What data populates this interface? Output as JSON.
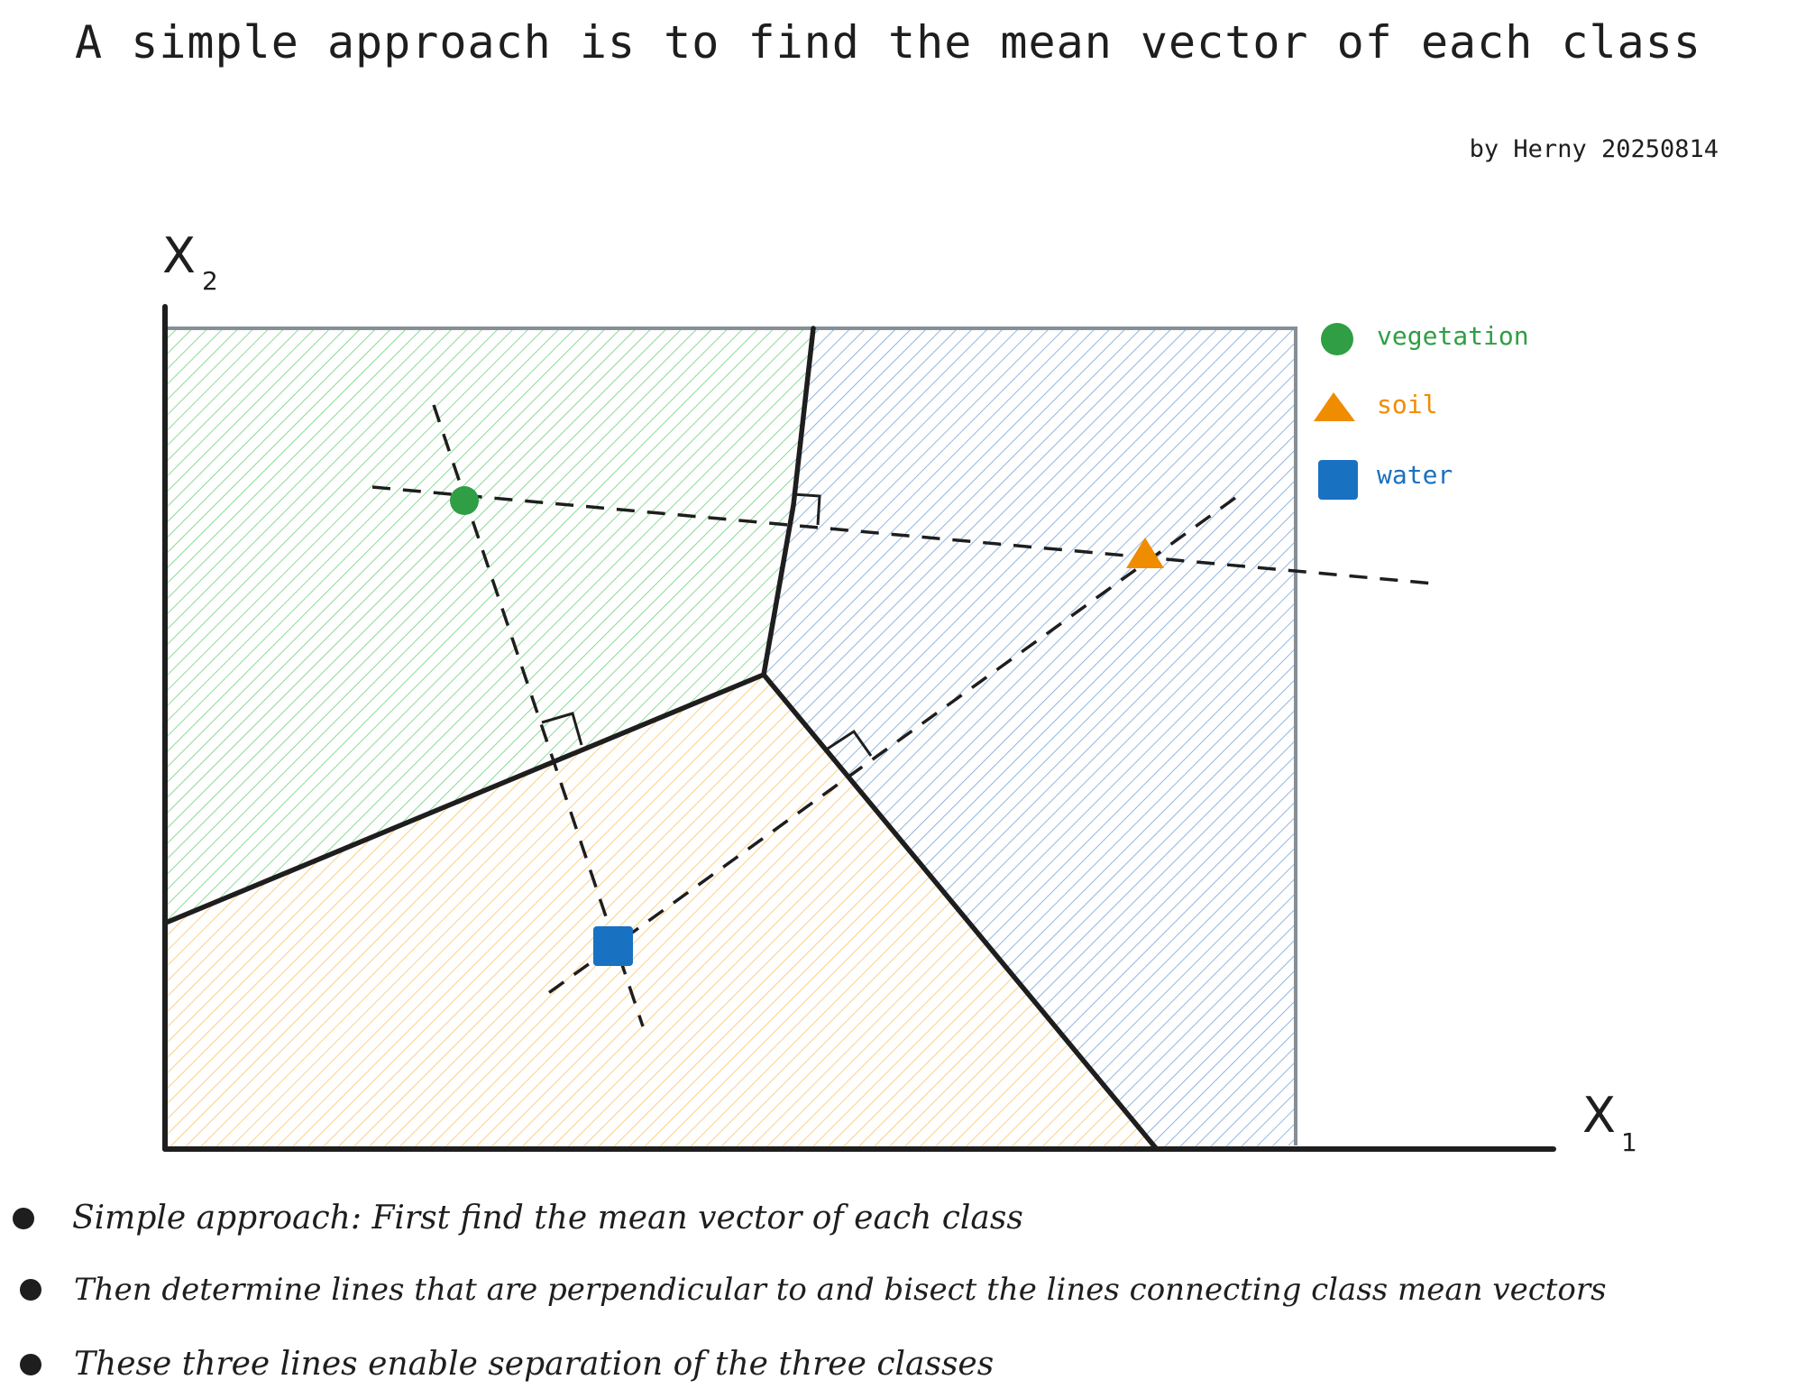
{
  "title": "A simple approach is to find the mean vector of each class",
  "author": "by Herny 20250814",
  "axes": {
    "x_label": "X",
    "x_sub": "1",
    "y_label": "X",
    "y_sub": "2"
  },
  "legend": [
    {
      "label": "vegetation",
      "shape": "circle",
      "color": "#2f9e44"
    },
    {
      "label": "soil",
      "shape": "triangle",
      "color": "#f08c00"
    },
    {
      "label": "water",
      "shape": "square",
      "color": "#1971c2"
    }
  ],
  "colors": {
    "vegetation_fill": "#b2f2bb",
    "vegetation_hatch": "#40c057",
    "soil_hatch": "#f59f00",
    "water_hatch": "#4a86c8",
    "line": "#1e1e1e"
  },
  "bullets": [
    "Simple approach: First find the mean vector of each class",
    "Then determine lines that are perpendicular to and bisect the lines connecting class mean vectors",
    "These three lines enable separation of the three classes"
  ]
}
